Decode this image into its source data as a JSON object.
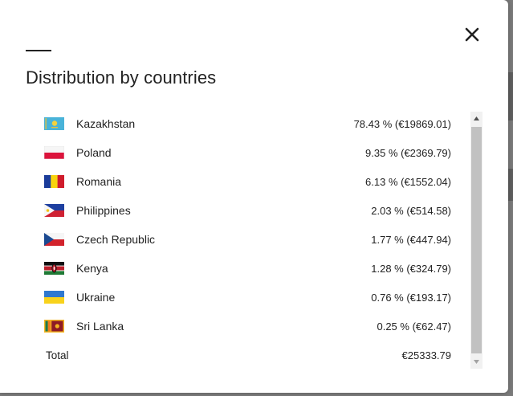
{
  "modal": {
    "title": "Distribution by countries",
    "close_icon": "close-icon"
  },
  "countries": [
    {
      "name": "Kazakhstan",
      "value": "78.43 % (€19869.01)",
      "flag": "kazakhstan-flag-icon"
    },
    {
      "name": "Poland",
      "value": "9.35 % (€2369.79)",
      "flag": "poland-flag-icon"
    },
    {
      "name": "Romania",
      "value": "6.13 % (€1552.04)",
      "flag": "romania-flag-icon"
    },
    {
      "name": "Philippines",
      "value": "2.03 % (€514.58)",
      "flag": "philippines-flag-icon"
    },
    {
      "name": "Czech Republic",
      "value": "1.77 % (€447.94)",
      "flag": "czech-republic-flag-icon"
    },
    {
      "name": "Kenya",
      "value": "1.28 % (€324.79)",
      "flag": "kenya-flag-icon"
    },
    {
      "name": "Ukraine",
      "value": "0.76 % (€193.17)",
      "flag": "ukraine-flag-icon"
    },
    {
      "name": "Sri Lanka",
      "value": "0.25 % (€62.47)",
      "flag": "sri-lanka-flag-icon"
    }
  ],
  "total": {
    "label": "Total",
    "value": "€25333.79"
  },
  "colors": {
    "text": "#222222",
    "scroll_thumb": "#c1c1c1",
    "scroll_track": "#f1f1f1"
  }
}
